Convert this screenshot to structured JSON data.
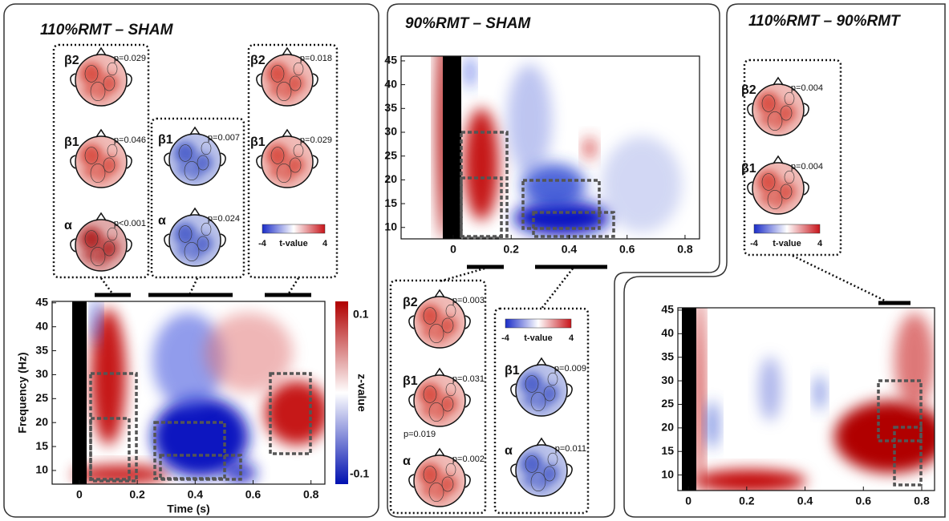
{
  "panels": [
    {
      "title": "110%RMT – SHAM",
      "y_label": "Frequency (Hz)",
      "x_label": "Time (s)",
      "xlim": [
        -0.094,
        0.848
      ],
      "ylim": [
        7.15,
        45.3
      ],
      "xticks": [
        0,
        0.2,
        0.4,
        0.6,
        0.8
      ],
      "yticks": [
        10,
        15,
        20,
        25,
        30,
        35,
        40,
        45
      ],
      "colorbar": {
        "label": "z-value",
        "max": 0.1,
        "min": -0.1
      },
      "t_colorbar": {
        "min": -4,
        "label": "t-value",
        "max": 4
      },
      "topo_groups": [
        {
          "maps": [
            {
              "band": "β2",
              "p": "p=0.029",
              "color": "#d43a2f"
            },
            {
              "band": "β1",
              "p": "p=0.046",
              "color": "#d43a2f"
            },
            {
              "band": "α",
              "p": "p<0.001",
              "color": "#a80c0c"
            }
          ]
        },
        {
          "maps": [
            {
              "band": "β1",
              "p": "p=0.007",
              "color": "#3a4fc4"
            },
            {
              "band": "α",
              "p": "p=0.024",
              "color": "#3a4fc4"
            }
          ]
        },
        {
          "maps": [
            {
              "band": "β2",
              "p": "p=0.018",
              "color": "#d43a2f"
            },
            {
              "band": "β1",
              "p": "p=0.029",
              "color": "#d43a2f"
            }
          ]
        }
      ]
    },
    {
      "title": "90%RMT – SHAM",
      "xlim": [
        -0.18,
        0.85
      ],
      "ylim": [
        7.6,
        46
      ],
      "xticks": [
        0,
        0.2,
        0.4,
        0.6,
        0.8
      ],
      "yticks": [
        10,
        15,
        20,
        25,
        30,
        35,
        40,
        45
      ],
      "t_colorbar": {
        "min": -4,
        "label": "t-value",
        "max": 4
      },
      "topo_groups": [
        {
          "maps": [
            {
              "band": "β2",
              "p": "p=0.003",
              "color": "#d43a2f"
            },
            {
              "band": "β1",
              "p": "p=0.031",
              "note": "p=0.019",
              "color": "#d43a2f"
            },
            {
              "band": "α",
              "p": "p=0.002",
              "color": "#d43a2f"
            }
          ]
        },
        {
          "maps": [
            {
              "band": "β1",
              "p": "p=0.009",
              "color": "#3a4fc4"
            },
            {
              "band": "α",
              "p": "p=0.011",
              "color": "#3a4fc4"
            }
          ]
        }
      ]
    },
    {
      "title": "110%RMT – 90%RMT",
      "xlim": [
        -0.036,
        0.844
      ],
      "ylim": [
        6.7,
        45.5
      ],
      "xticks": [
        0,
        0.2,
        0.4,
        0.6,
        0.8
      ],
      "yticks": [
        10,
        15,
        20,
        25,
        30,
        35,
        40,
        45
      ],
      "t_colorbar": {
        "min": -4,
        "label": "t-value",
        "max": 4
      },
      "topo_groups": [
        {
          "maps": [
            {
              "band": "β2",
              "p": "p=0.004",
              "color": "#d43a2f"
            },
            {
              "band": "β1",
              "p": "p=0.004",
              "color": "#d43a2f"
            }
          ]
        }
      ]
    }
  ]
}
